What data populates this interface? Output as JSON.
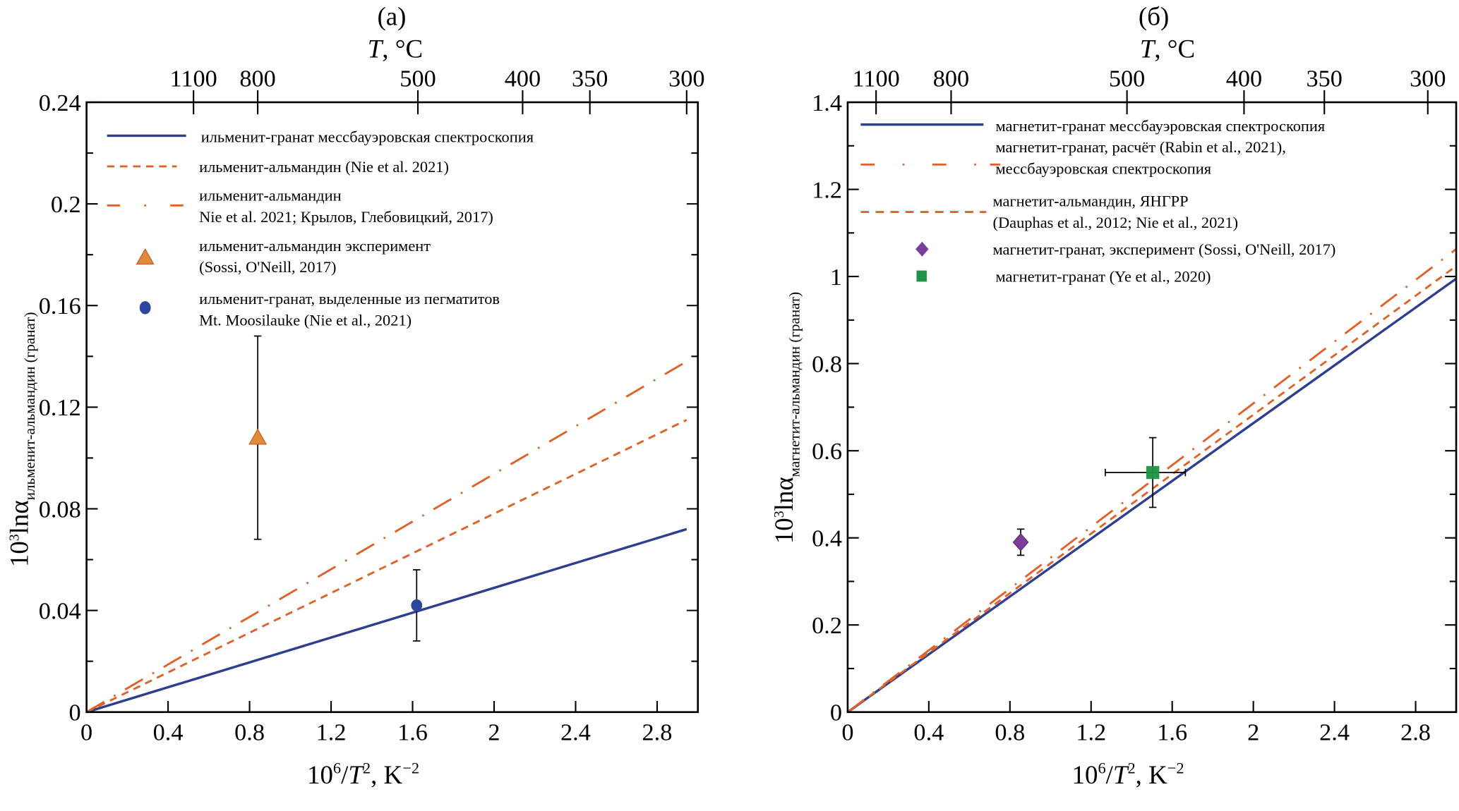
{
  "chart_data": [
    {
      "type": "line",
      "panel_label": "(a)",
      "top_axis_label": {
        "var": "T",
        "rest": ", °C"
      },
      "top_ticks": [
        {
          "label": "1100",
          "x": 0.525
        },
        {
          "label": "800",
          "x": 0.84
        },
        {
          "label": "500",
          "x": 1.626
        },
        {
          "label": "400",
          "x": 2.14
        },
        {
          "label": "350",
          "x": 2.47
        },
        {
          "label": "300",
          "x": 2.945
        }
      ],
      "xlabel": {
        "pre": "10",
        "exp": "6",
        "slash": "/",
        "var": "T",
        "exp2": "2",
        "unit": ", K",
        "unitexp": "−2"
      },
      "ylabel": {
        "pre": "10",
        "exp": "3",
        "main": "lnα",
        "sub": "ильменит-альмандин (гранат)"
      },
      "xlim": [
        0,
        3.0
      ],
      "ylim": [
        0,
        0.24
      ],
      "xticks": [
        "0",
        "0.4",
        "0.8",
        "1.2",
        "1.6",
        "2",
        "2.4",
        "2.8"
      ],
      "xtick_values": [
        0,
        0.4,
        0.8,
        1.2,
        1.6,
        2,
        2.4,
        2.8
      ],
      "yticks": [
        "0",
        "0.04",
        "0.08",
        "0.12",
        "0.16",
        "0.2",
        "0.24"
      ],
      "ytick_values": [
        0,
        0.04,
        0.08,
        0.12,
        0.16,
        0.2,
        0.24
      ],
      "grid": false,
      "legend_position": "top-left",
      "series": [
        {
          "name": "ильменит-гранат мессбауэровская спектроскопия",
          "style": "solid",
          "color": "#2e3f8f",
          "x": [
            0,
            2.945
          ],
          "y": [
            0,
            0.072
          ]
        },
        {
          "name": "ильменит-альмандин (Nie et al. 2021)",
          "style": "dashed",
          "color": "#e0622a",
          "x": [
            0,
            2.945
          ],
          "y": [
            0,
            0.115
          ]
        },
        {
          "name": "ильменит-альмандин",
          "name2": "Nie et al. 2021; Крылов, Глебовицкий, 2017)",
          "style": "dashdot",
          "color": "#e0622a",
          "x": [
            0,
            2.945
          ],
          "y": [
            0,
            0.138
          ]
        }
      ],
      "points": [
        {
          "name": "ильменит-альмандин эксперимент",
          "name2": "(Sossi, O'Neill, 2017)",
          "marker": "triangle",
          "color": "#e08a3c",
          "x": 0.84,
          "y": 0.108,
          "yerr": [
            0.068,
            0.148
          ]
        },
        {
          "name": "ильменит-гранат, выделенные из пегматитов",
          "name2": "Mt. Moosilauke (Nie et al., 2021)",
          "marker": "circle",
          "color": "#2e45a0",
          "x": 1.62,
          "y": 0.042,
          "yerr": [
            0.028,
            0.056
          ]
        }
      ]
    },
    {
      "type": "line",
      "panel_label": "(б)",
      "top_axis_label": {
        "var": "T",
        "rest": ", °C"
      },
      "top_ticks": [
        {
          "label": "1100",
          "x": 0.14
        },
        {
          "label": "800",
          "x": 0.51
        },
        {
          "label": "500",
          "x": 1.377
        },
        {
          "label": "400",
          "x": 1.954
        },
        {
          "label": "350",
          "x": 2.35
        },
        {
          "label": "300",
          "x": 2.86
        }
      ],
      "xlabel": {
        "pre": "10",
        "exp": "6",
        "slash": "/",
        "var": "T",
        "exp2": "2",
        "unit": ", K",
        "unitexp": "−2"
      },
      "ylabel": {
        "pre": "10",
        "exp": "3",
        "main": "lnα",
        "sub": "магнетит-альмандин (гранат)"
      },
      "xlim": [
        0,
        3.0
      ],
      "ylim": [
        0,
        1.4
      ],
      "xticks": [
        "0",
        "0.4",
        "0.8",
        "1.2",
        "1.6",
        "2",
        "2.4",
        "2.8"
      ],
      "xtick_values": [
        0,
        0.4,
        0.8,
        1.2,
        1.6,
        2,
        2.4,
        2.8
      ],
      "yticks": [
        "0",
        "0.2",
        "0.4",
        "0.6",
        "0.8",
        "1",
        "1.2",
        "1.4"
      ],
      "ytick_values": [
        0,
        0.2,
        0.4,
        0.6,
        0.8,
        1,
        1.2,
        1.4
      ],
      "grid": false,
      "legend_position": "top-left",
      "series": [
        {
          "name": "магнетит-гранат мессбауэровская спектроскопия",
          "style": "solid",
          "color": "#2e3f8f",
          "x": [
            0,
            3.0
          ],
          "y": [
            0,
            0.995
          ]
        },
        {
          "name": "магнетит-гранат, расчёт (Rabin et al., 2021),",
          "name2": "мессбауэровская спектроскопия",
          "style": "dashdot",
          "color": "#e0622a",
          "x": [
            0,
            3.0
          ],
          "y": [
            0,
            1.063
          ]
        },
        {
          "name": "магнетит-альмандин, ЯНГРР",
          "name2": "(Dauphas et al., 2012; Nie et al., 2021)",
          "style": "dashed",
          "color": "#e0622a",
          "x": [
            0,
            3.0
          ],
          "y": [
            0,
            1.024
          ]
        }
      ],
      "points": [
        {
          "name": "магнетит-гранат, эксперимент (Sossi, O'Neill, 2017)",
          "marker": "diamond",
          "color": "#7b3f99",
          "x": 0.853,
          "y": 0.39,
          "yerr": [
            0.36,
            0.42
          ]
        },
        {
          "name": "магнетит-гранат (Ye et al., 2020)",
          "marker": "square",
          "color": "#1e9444",
          "x": 1.504,
          "y": 0.55,
          "yerr": [
            0.47,
            0.63
          ],
          "xerr": [
            1.27,
            1.665
          ]
        }
      ]
    }
  ]
}
